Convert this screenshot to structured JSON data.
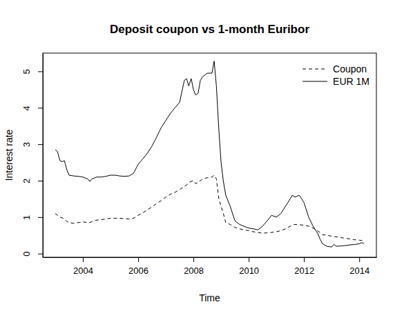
{
  "chart_data": {
    "type": "line",
    "title": "Deposit coupon vs 1-month Euribor",
    "x_label": "Time",
    "y_label": "Interest rate",
    "x": [
      2003.0,
      2003.08,
      2003.17,
      2003.25,
      2003.33,
      2003.42,
      2003.5,
      2003.67,
      2003.83,
      2004.0,
      2004.17,
      2004.25,
      2004.33,
      2004.5,
      2004.67,
      2004.83,
      2005.0,
      2005.17,
      2005.33,
      2005.5,
      2005.67,
      2005.83,
      2006.0,
      2006.17,
      2006.33,
      2006.5,
      2006.67,
      2006.83,
      2007.0,
      2007.17,
      2007.33,
      2007.5,
      2007.67,
      2007.75,
      2007.83,
      2007.92,
      2008.0,
      2008.08,
      2008.17,
      2008.25,
      2008.33,
      2008.5,
      2008.67,
      2008.75,
      2008.83,
      2008.92,
      2009.0,
      2009.08,
      2009.17,
      2009.33,
      2009.5,
      2009.67,
      2009.83,
      2010.0,
      2010.17,
      2010.33,
      2010.5,
      2010.67,
      2010.83,
      2011.0,
      2011.17,
      2011.33,
      2011.5,
      2011.58,
      2011.67,
      2011.83,
      2012.0,
      2012.17,
      2012.33,
      2012.5,
      2012.58,
      2012.67,
      2012.83,
      2013.0,
      2013.08,
      2013.17,
      2013.33,
      2013.5,
      2013.67,
      2013.83,
      2014.0,
      2014.08,
      2014.17
    ],
    "series": [
      {
        "name": "Coupon",
        "color": "#000000",
        "line_style": "dashed",
        "values": [
          1.1,
          1.05,
          1.0,
          0.98,
          0.95,
          0.88,
          0.85,
          0.83,
          0.85,
          0.87,
          0.85,
          0.85,
          0.88,
          0.92,
          0.93,
          0.95,
          0.97,
          0.97,
          0.97,
          0.96,
          0.95,
          0.97,
          1.05,
          1.12,
          1.2,
          1.28,
          1.38,
          1.45,
          1.55,
          1.63,
          1.68,
          1.75,
          1.85,
          1.88,
          1.95,
          1.98,
          2.0,
          1.92,
          1.95,
          2.0,
          2.05,
          2.08,
          2.1,
          2.15,
          2.05,
          1.5,
          1.3,
          1.1,
          0.85,
          0.8,
          0.72,
          0.68,
          0.65,
          0.63,
          0.6,
          0.58,
          0.56,
          0.57,
          0.58,
          0.6,
          0.63,
          0.68,
          0.75,
          0.78,
          0.8,
          0.79,
          0.78,
          0.75,
          0.7,
          0.62,
          0.58,
          0.52,
          0.5,
          0.48,
          0.47,
          0.46,
          0.44,
          0.42,
          0.4,
          0.38,
          0.37,
          0.36,
          0.36
        ]
      },
      {
        "name": "EUR 1M",
        "color": "#000000",
        "line_style": "solid",
        "values": [
          2.85,
          2.8,
          2.55,
          2.52,
          2.55,
          2.3,
          2.15,
          2.13,
          2.12,
          2.1,
          2.05,
          1.98,
          2.05,
          2.1,
          2.1,
          2.12,
          2.15,
          2.15,
          2.13,
          2.12,
          2.13,
          2.2,
          2.45,
          2.6,
          2.75,
          2.95,
          3.2,
          3.45,
          3.65,
          3.85,
          4.0,
          4.15,
          4.75,
          4.8,
          4.6,
          4.8,
          4.5,
          4.35,
          4.4,
          4.75,
          4.85,
          4.95,
          4.95,
          5.28,
          4.6,
          3.4,
          2.5,
          2.0,
          1.6,
          1.3,
          0.9,
          0.8,
          0.75,
          0.7,
          0.68,
          0.65,
          0.75,
          0.9,
          1.05,
          1.0,
          1.1,
          1.3,
          1.5,
          1.6,
          1.55,
          1.6,
          1.4,
          1.0,
          0.75,
          0.55,
          0.4,
          0.27,
          0.2,
          0.18,
          0.25,
          0.2,
          0.21,
          0.22,
          0.24,
          0.25,
          0.27,
          0.3,
          0.28
        ]
      }
    ],
    "xlim": [
      2002.55,
      2014.62
    ],
    "xticks": [
      2004,
      2006,
      2008,
      2010,
      2012,
      2014
    ],
    "ylim": [
      -0.1,
      5.5
    ],
    "yticks": [
      0,
      1,
      2,
      3,
      4,
      5
    ],
    "grid": false,
    "legend": "topright"
  }
}
